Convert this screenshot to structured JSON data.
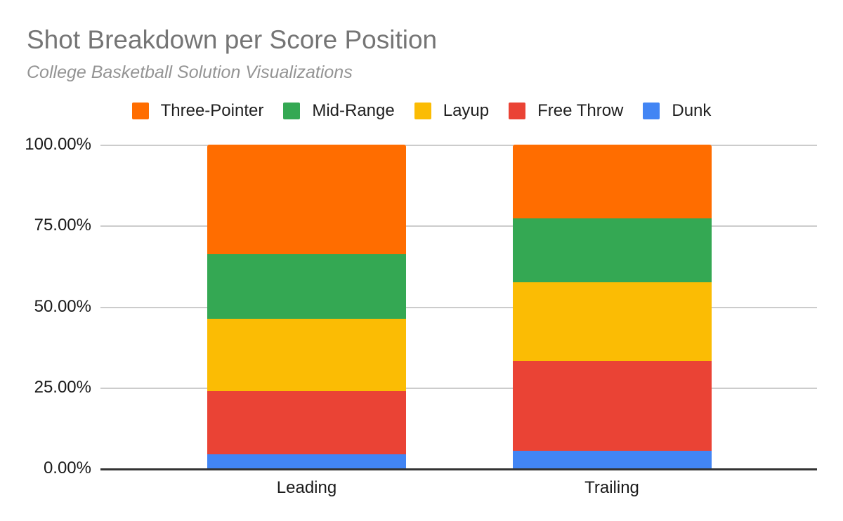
{
  "chart_data": {
    "type": "bar",
    "variant": "100-percent-stacked-column",
    "title": "Shot Breakdown per Score Position",
    "subtitle": "College Basketball Solution Visualizations",
    "categories": [
      "Leading",
      "Trailing"
    ],
    "series": [
      {
        "name": "Dunk",
        "color": "#4285F4",
        "values": [
          4.3,
          5.4
        ]
      },
      {
        "name": "Free Throw",
        "color": "#EA4335",
        "values": [
          19.6,
          27.8
        ]
      },
      {
        "name": "Layup",
        "color": "#FBBC04",
        "values": [
          22.3,
          24.3
        ]
      },
      {
        "name": "Mid-Range",
        "color": "#34A853",
        "values": [
          20.0,
          19.7
        ]
      },
      {
        "name": "Three-Pointer",
        "color": "#FF6D00",
        "values": [
          33.8,
          22.8
        ]
      }
    ],
    "legend_order": [
      "Three-Pointer",
      "Mid-Range",
      "Layup",
      "Free Throw",
      "Dunk"
    ],
    "legend_position": "top",
    "y_ticks": [
      {
        "label": "0.00%",
        "value": 0
      },
      {
        "label": "25.00%",
        "value": 25
      },
      {
        "label": "50.00%",
        "value": 50
      },
      {
        "label": "75.00%",
        "value": 75
      },
      {
        "label": "100.00%",
        "value": 100
      }
    ],
    "ylim": [
      0,
      100
    ],
    "grid": true,
    "palette": {
      "gridline": "#CCCCCC",
      "axis_line": "#333333",
      "title_text": "#757575",
      "subtitle_text": "#949494",
      "tick_text": "#1A1A1A"
    }
  }
}
